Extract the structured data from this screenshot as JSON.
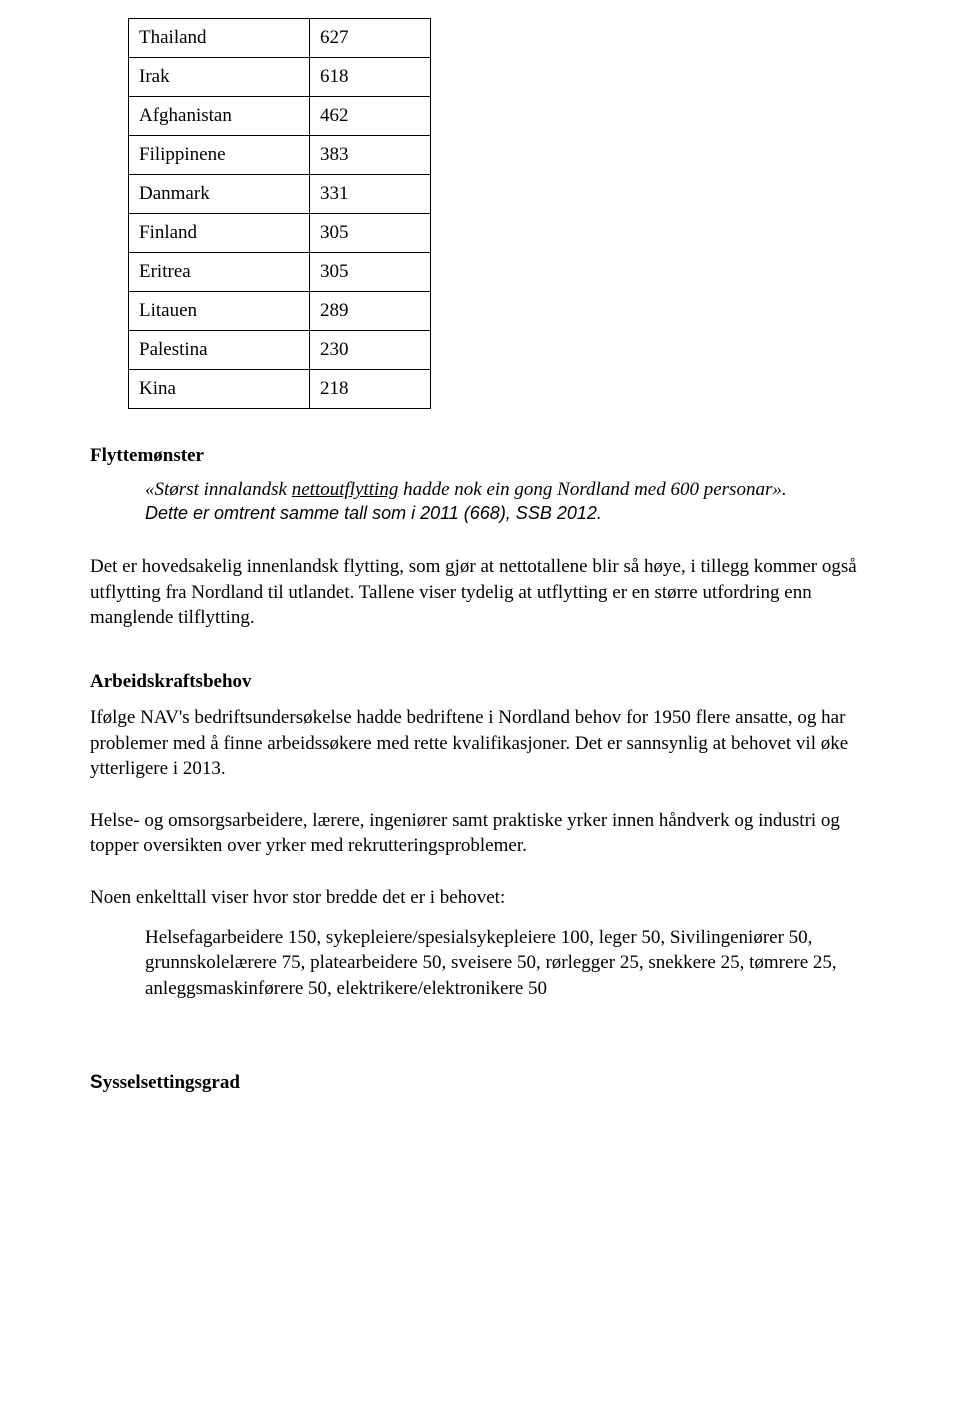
{
  "table": {
    "rows": [
      {
        "country": "Thailand",
        "value": "627"
      },
      {
        "country": "Irak",
        "value": "618"
      },
      {
        "country": "Afghanistan",
        "value": "462"
      },
      {
        "country": "Filippinene",
        "value": "383"
      },
      {
        "country": "Danmark",
        "value": "331"
      },
      {
        "country": "Finland",
        "value": "305"
      },
      {
        "country": "Eritrea",
        "value": "305"
      },
      {
        "country": "Litauen",
        "value": "289"
      },
      {
        "country": "Palestina",
        "value": "230"
      },
      {
        "country": "Kina",
        "value": "218"
      }
    ]
  },
  "headings": {
    "flyttemonster": "Flyttemønster",
    "arbeidskraftsbehov": "Arbeidskraftsbehov",
    "sysselsettingsgrad_s": "S",
    "sysselsettingsgrad_rest": "ysselsettingsgrad"
  },
  "quote": {
    "prefix": "«Størst innalandsk ",
    "underlined": "nettoutflytting",
    "suffix": " hadde nok ein gong Nordland med 600 personar».",
    "line2": "Dette er omtrent samme tall som i 2011 (668), SSB 2012."
  },
  "paragraphs": {
    "p1": "Det er hovedsakelig innenlandsk flytting, som gjør at nettotallene blir så høye, i tillegg kommer også utflytting fra Nordland til utlandet. Tallene viser tydelig at utflytting er en større utfordring enn manglende tilflytting.",
    "p2": "Ifølge NAV's bedriftsundersøkelse hadde bedriftene i Nordland behov for 1950 flere ansatte, og har problemer med å finne arbeidssøkere med rette kvalifikasjoner.  Det er sannsynlig at behovet vil øke ytterligere i 2013.",
    "p3": "Helse- og omsorgsarbeidere, lærere, ingeniører samt praktiske yrker innen håndverk og industri og topper oversikten over yrker med rekrutteringsproblemer.",
    "p4": "Noen enkelttall viser hvor stor bredde det er i behovet:",
    "p5": "Helsefagarbeidere 150, sykepleiere/spesialsykepleiere 100, leger 50, Sivilingeniører 50, grunnskolelærere 75, platearbeidere 50, sveisere 50, rørlegger 25, snekkere 25, tømrere 25, anleggsmaskinførere 50, elektrikere/elektronikere 50"
  }
}
